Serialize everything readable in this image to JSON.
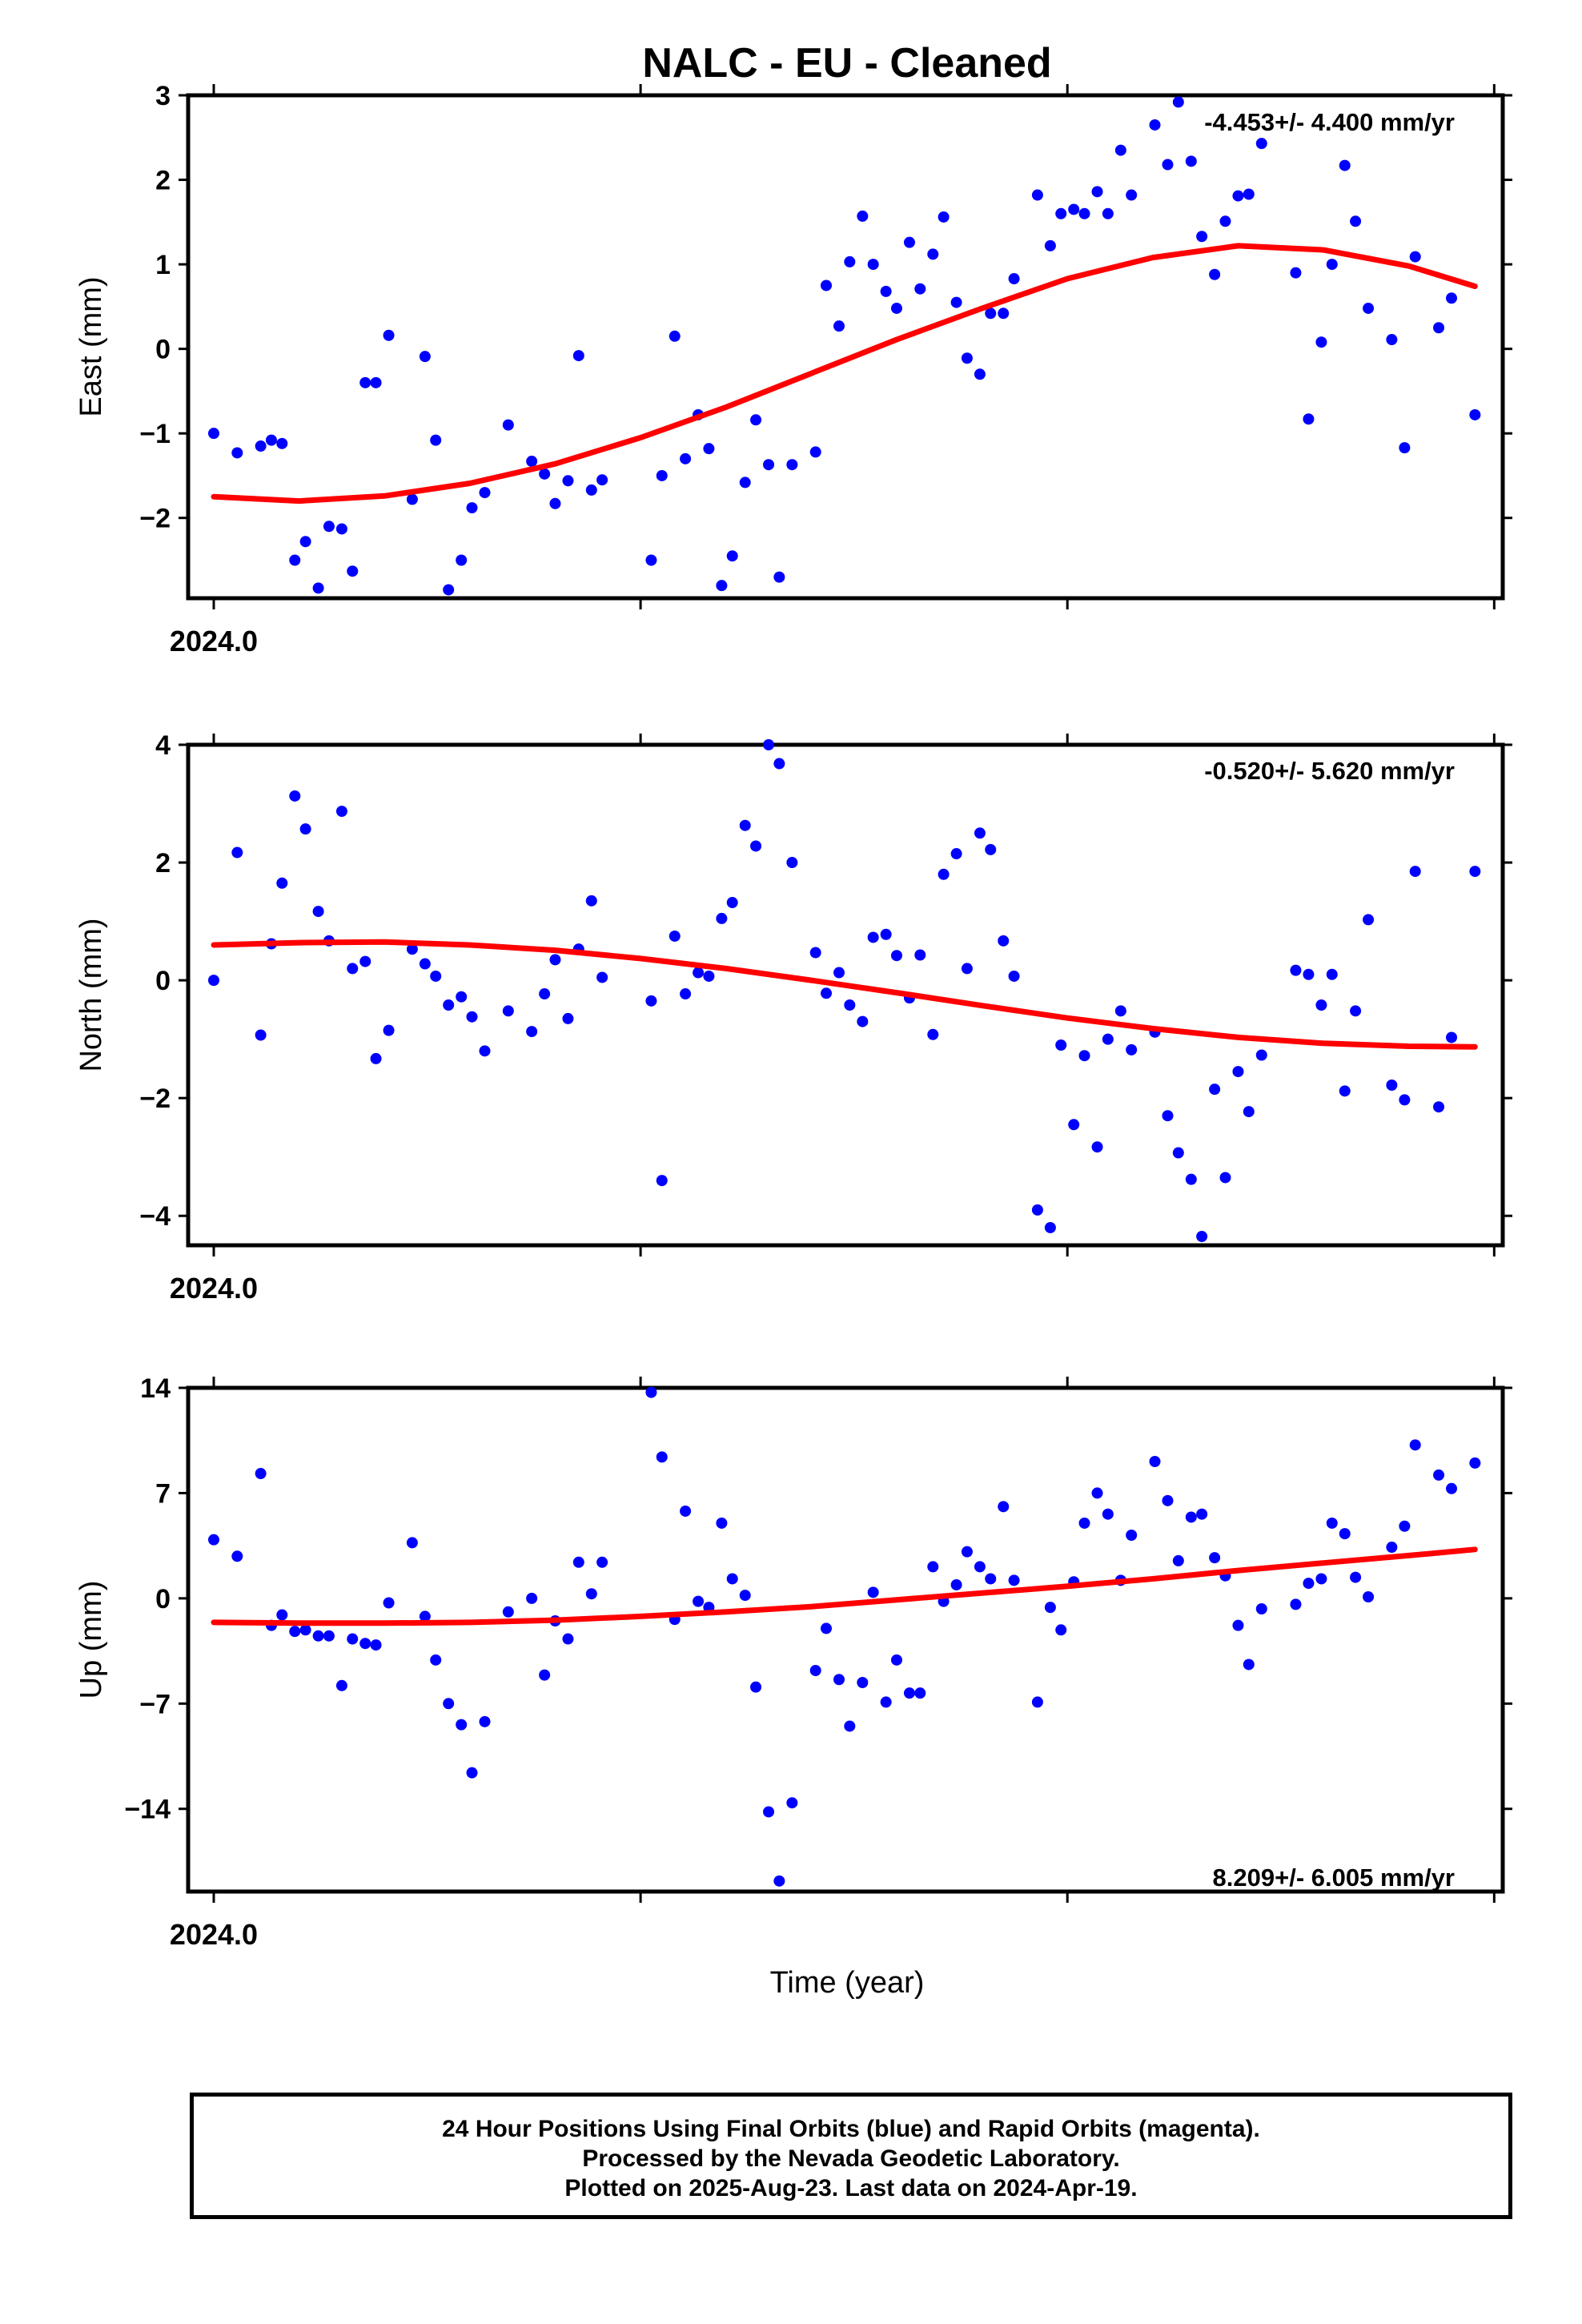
{
  "title": "NALC  - EU - Cleaned",
  "xlabel": "Time (year)",
  "footer": {
    "line1": "24 Hour Positions Using Final Orbits (blue) and Rapid Orbits (magenta).",
    "line2": "Processed by the Nevada Geodetic Laboratory.",
    "line3": "Plotted on 2025-Aug-23. Last data on 2024-Apr-19."
  },
  "colors": {
    "points": "#0000ff",
    "fit": "#ff0000",
    "axes": "#000000"
  },
  "chart_data": [
    {
      "type": "scatter",
      "component": "east",
      "ylabel": "East (mm)",
      "annotation": "-4.453+/- 4.400 mm/yr",
      "ylim": [
        -2.95,
        3.0
      ],
      "yticks": [
        -2,
        -1,
        0,
        1,
        2,
        3
      ],
      "xlim": [
        2023.994,
        2024.302
      ],
      "xtick_labels": [
        {
          "x": 2024.0,
          "label": "2024.0"
        }
      ],
      "grid": false,
      "points": [
        [
          2024.0,
          -1.0
        ],
        [
          2024.0055,
          -1.23
        ],
        [
          2024.011,
          -1.15
        ],
        [
          2024.0135,
          -1.08
        ],
        [
          2024.016,
          -1.12
        ],
        [
          2024.019,
          -2.5
        ],
        [
          2024.0215,
          -2.28
        ],
        [
          2024.0245,
          -2.83
        ],
        [
          2024.027,
          -2.1
        ],
        [
          2024.03,
          -2.13
        ],
        [
          2024.0325,
          -2.63
        ],
        [
          2024.0355,
          -0.4
        ],
        [
          2024.038,
          -0.4
        ],
        [
          2024.041,
          0.16
        ],
        [
          2024.0465,
          -1.78
        ],
        [
          2024.0495,
          -0.09
        ],
        [
          2024.052,
          -1.08
        ],
        [
          2024.055,
          -2.85
        ],
        [
          2024.058,
          -2.5
        ],
        [
          2024.0605,
          -1.88
        ],
        [
          2024.0635,
          -1.7
        ],
        [
          2024.069,
          -0.9
        ],
        [
          2024.0745,
          -1.33
        ],
        [
          2024.0775,
          -1.48
        ],
        [
          2024.08,
          -1.83
        ],
        [
          2024.083,
          -1.56
        ],
        [
          2024.0855,
          -0.08
        ],
        [
          2024.0885,
          -1.67
        ],
        [
          2024.091,
          -1.55
        ],
        [
          2024.1025,
          -2.5
        ],
        [
          2024.105,
          -1.5
        ],
        [
          2024.108,
          0.15
        ],
        [
          2024.1105,
          -1.3
        ],
        [
          2024.1135,
          -0.78
        ],
        [
          2024.116,
          -1.18
        ],
        [
          2024.119,
          -2.8
        ],
        [
          2024.1215,
          -2.45
        ],
        [
          2024.1245,
          -1.58
        ],
        [
          2024.127,
          -0.84
        ],
        [
          2024.13,
          -1.37
        ],
        [
          2024.1325,
          -2.7
        ],
        [
          2024.1355,
          -1.37
        ],
        [
          2024.141,
          -1.22
        ],
        [
          2024.1435,
          0.75
        ],
        [
          2024.1465,
          0.27
        ],
        [
          2024.149,
          1.03
        ],
        [
          2024.152,
          1.57
        ],
        [
          2024.1545,
          1.0
        ],
        [
          2024.1575,
          0.68
        ],
        [
          2024.16,
          0.48
        ],
        [
          2024.163,
          1.26
        ],
        [
          2024.1655,
          0.71
        ],
        [
          2024.1685,
          1.12
        ],
        [
          2024.171,
          1.56
        ],
        [
          2024.174,
          0.55
        ],
        [
          2024.1765,
          -0.11
        ],
        [
          2024.1795,
          -0.3
        ],
        [
          2024.182,
          0.42
        ],
        [
          2024.185,
          0.42
        ],
        [
          2024.1875,
          0.83
        ],
        [
          2024.193,
          1.82
        ],
        [
          2024.196,
          1.22
        ],
        [
          2024.1985,
          1.6
        ],
        [
          2024.2015,
          1.65
        ],
        [
          2024.204,
          1.6
        ],
        [
          2024.207,
          1.86
        ],
        [
          2024.2095,
          1.6
        ],
        [
          2024.2125,
          2.35
        ],
        [
          2024.215,
          1.82
        ],
        [
          2024.2205,
          2.65
        ],
        [
          2024.2235,
          2.18
        ],
        [
          2024.226,
          2.92
        ],
        [
          2024.229,
          2.22
        ],
        [
          2024.2315,
          1.33
        ],
        [
          2024.2345,
          0.88
        ],
        [
          2024.237,
          1.51
        ],
        [
          2024.24,
          1.81
        ],
        [
          2024.2425,
          1.83
        ],
        [
          2024.2455,
          2.43
        ],
        [
          2024.2535,
          0.9
        ],
        [
          2024.2565,
          -0.83
        ],
        [
          2024.2595,
          0.08
        ],
        [
          2024.262,
          1.0
        ],
        [
          2024.265,
          2.17
        ],
        [
          2024.2675,
          1.51
        ],
        [
          2024.2705,
          0.48
        ],
        [
          2024.276,
          0.11
        ],
        [
          2024.279,
          -1.17
        ],
        [
          2024.2815,
          1.09
        ],
        [
          2024.287,
          0.25
        ],
        [
          2024.29,
          0.6
        ],
        [
          2024.2955,
          -0.78
        ]
      ],
      "fit": {
        "x": [
          2024.0,
          2024.02,
          2024.04,
          2024.06,
          2024.08,
          2024.1,
          2024.12,
          2024.14,
          2024.16,
          2024.18,
          2024.2,
          2024.22,
          2024.24,
          2024.26,
          2024.28,
          2024.2955
        ],
        "y": [
          -1.75,
          -1.8,
          -1.74,
          -1.59,
          -1.36,
          -1.05,
          -0.69,
          -0.29,
          0.11,
          0.48,
          0.83,
          1.08,
          1.22,
          1.17,
          0.98,
          0.74
        ]
      }
    },
    {
      "type": "scatter",
      "component": "north",
      "ylabel": "North (mm)",
      "annotation": "-0.520+/- 5.620 mm/yr",
      "ylim": [
        -4.5,
        4.0
      ],
      "yticks": [
        -4,
        -2,
        0,
        2,
        4
      ],
      "xlim": [
        2023.994,
        2024.302
      ],
      "xtick_labels": [
        {
          "x": 2024.0,
          "label": "2024.0"
        }
      ],
      "grid": false,
      "points": [
        [
          2024.0,
          0.0
        ],
        [
          2024.0055,
          2.17
        ],
        [
          2024.011,
          -0.93
        ],
        [
          2024.0135,
          0.62
        ],
        [
          2024.016,
          1.65
        ],
        [
          2024.019,
          3.13
        ],
        [
          2024.0215,
          2.57
        ],
        [
          2024.0245,
          1.17
        ],
        [
          2024.027,
          0.67
        ],
        [
          2024.03,
          2.87
        ],
        [
          2024.0325,
          0.2
        ],
        [
          2024.0355,
          0.32
        ],
        [
          2024.038,
          -1.33
        ],
        [
          2024.041,
          -0.85
        ],
        [
          2024.0465,
          0.53
        ],
        [
          2024.0495,
          0.28
        ],
        [
          2024.052,
          0.07
        ],
        [
          2024.055,
          -0.42
        ],
        [
          2024.058,
          -0.28
        ],
        [
          2024.0605,
          -0.62
        ],
        [
          2024.0635,
          -1.2
        ],
        [
          2024.069,
          -0.52
        ],
        [
          2024.0745,
          -0.87
        ],
        [
          2024.0775,
          -0.23
        ],
        [
          2024.08,
          0.35
        ],
        [
          2024.083,
          -0.65
        ],
        [
          2024.0855,
          0.53
        ],
        [
          2024.0885,
          1.35
        ],
        [
          2024.091,
          0.05
        ],
        [
          2024.1025,
          -0.35
        ],
        [
          2024.105,
          -3.4
        ],
        [
          2024.108,
          0.75
        ],
        [
          2024.1105,
          -0.23
        ],
        [
          2024.1135,
          0.13
        ],
        [
          2024.116,
          0.07
        ],
        [
          2024.119,
          1.05
        ],
        [
          2024.1215,
          1.32
        ],
        [
          2024.1245,
          2.63
        ],
        [
          2024.127,
          2.28
        ],
        [
          2024.13,
          4.0
        ],
        [
          2024.1325,
          3.68
        ],
        [
          2024.1355,
          2.0
        ],
        [
          2024.141,
          0.47
        ],
        [
          2024.1435,
          -0.22
        ],
        [
          2024.1465,
          0.13
        ],
        [
          2024.149,
          -0.42
        ],
        [
          2024.152,
          -0.7
        ],
        [
          2024.1545,
          0.73
        ],
        [
          2024.1575,
          0.78
        ],
        [
          2024.16,
          0.42
        ],
        [
          2024.163,
          -0.3
        ],
        [
          2024.1655,
          0.43
        ],
        [
          2024.1685,
          -0.92
        ],
        [
          2024.171,
          1.8
        ],
        [
          2024.174,
          2.15
        ],
        [
          2024.1765,
          0.2
        ],
        [
          2024.1795,
          2.5
        ],
        [
          2024.182,
          2.22
        ],
        [
          2024.185,
          0.67
        ],
        [
          2024.1875,
          0.07
        ],
        [
          2024.193,
          -3.9
        ],
        [
          2024.196,
          -4.2
        ],
        [
          2024.1985,
          -1.1
        ],
        [
          2024.2015,
          -2.45
        ],
        [
          2024.204,
          -1.28
        ],
        [
          2024.207,
          -2.83
        ],
        [
          2024.2095,
          -1.0
        ],
        [
          2024.2125,
          -0.52
        ],
        [
          2024.215,
          -1.18
        ],
        [
          2024.2205,
          -0.88
        ],
        [
          2024.2235,
          -2.3
        ],
        [
          2024.226,
          -2.93
        ],
        [
          2024.229,
          -3.38
        ],
        [
          2024.2315,
          -4.35
        ],
        [
          2024.2345,
          -1.85
        ],
        [
          2024.237,
          -3.35
        ],
        [
          2024.24,
          -1.55
        ],
        [
          2024.2425,
          -2.23
        ],
        [
          2024.2455,
          -1.27
        ],
        [
          2024.2535,
          0.17
        ],
        [
          2024.2565,
          0.1
        ],
        [
          2024.2595,
          -0.42
        ],
        [
          2024.262,
          0.1
        ],
        [
          2024.265,
          -1.88
        ],
        [
          2024.2675,
          -0.52
        ],
        [
          2024.2705,
          1.03
        ],
        [
          2024.276,
          -1.78
        ],
        [
          2024.279,
          -2.03
        ],
        [
          2024.2815,
          1.85
        ],
        [
          2024.287,
          -2.15
        ],
        [
          2024.29,
          -0.97
        ],
        [
          2024.2955,
          1.85
        ]
      ],
      "fit": {
        "x": [
          2024.0,
          2024.02,
          2024.04,
          2024.06,
          2024.08,
          2024.1,
          2024.12,
          2024.14,
          2024.16,
          2024.18,
          2024.2,
          2024.22,
          2024.24,
          2024.26,
          2024.28,
          2024.2955
        ],
        "y": [
          0.6,
          0.64,
          0.65,
          0.6,
          0.51,
          0.37,
          0.2,
          0.0,
          -0.21,
          -0.43,
          -0.64,
          -0.82,
          -0.97,
          -1.07,
          -1.12,
          -1.13
        ]
      }
    },
    {
      "type": "scatter",
      "component": "up",
      "ylabel": "Up (mm)",
      "annotation": "8.209+/- 6.005 mm/yr",
      "ylim": [
        -19.5,
        14.0
      ],
      "yticks": [
        -14,
        -7,
        0,
        7,
        14
      ],
      "xlim": [
        2023.994,
        2024.302
      ],
      "xtick_labels": [
        {
          "x": 2024.0,
          "label": "2024.0"
        }
      ],
      "grid": false,
      "points": [
        [
          2024.0,
          3.9
        ],
        [
          2024.0055,
          2.8
        ],
        [
          2024.011,
          8.3
        ],
        [
          2024.0135,
          -1.8
        ],
        [
          2024.016,
          -1.1
        ],
        [
          2024.019,
          -2.2
        ],
        [
          2024.0215,
          -2.1
        ],
        [
          2024.0245,
          -2.5
        ],
        [
          2024.027,
          -2.5
        ],
        [
          2024.03,
          -5.8
        ],
        [
          2024.0325,
          -2.7
        ],
        [
          2024.0355,
          -3.0
        ],
        [
          2024.038,
          -3.1
        ],
        [
          2024.041,
          -0.3
        ],
        [
          2024.0465,
          3.7
        ],
        [
          2024.0495,
          -1.2
        ],
        [
          2024.052,
          -4.1
        ],
        [
          2024.055,
          -7.0
        ],
        [
          2024.058,
          -8.4
        ],
        [
          2024.0605,
          -11.6
        ],
        [
          2024.0635,
          -8.2
        ],
        [
          2024.069,
          -0.9
        ],
        [
          2024.0745,
          0.0
        ],
        [
          2024.0775,
          -5.1
        ],
        [
          2024.08,
          -1.5
        ],
        [
          2024.083,
          -2.7
        ],
        [
          2024.0855,
          2.4
        ],
        [
          2024.0885,
          0.3
        ],
        [
          2024.091,
          2.4
        ],
        [
          2024.1025,
          13.7
        ],
        [
          2024.105,
          9.4
        ],
        [
          2024.108,
          -1.4
        ],
        [
          2024.1105,
          5.8
        ],
        [
          2024.1135,
          -0.2
        ],
        [
          2024.116,
          -0.6
        ],
        [
          2024.119,
          5.0
        ],
        [
          2024.1215,
          1.3
        ],
        [
          2024.1245,
          0.2
        ],
        [
          2024.127,
          -5.9
        ],
        [
          2024.13,
          -14.2
        ],
        [
          2024.1325,
          -18.8
        ],
        [
          2024.1355,
          -13.6
        ],
        [
          2024.141,
          -4.8
        ],
        [
          2024.1435,
          -2.0
        ],
        [
          2024.1465,
          -5.4
        ],
        [
          2024.149,
          -8.5
        ],
        [
          2024.152,
          -5.6
        ],
        [
          2024.1545,
          0.4
        ],
        [
          2024.1575,
          -6.9
        ],
        [
          2024.16,
          -4.1
        ],
        [
          2024.163,
          -6.3
        ],
        [
          2024.1655,
          -6.3
        ],
        [
          2024.1685,
          2.1
        ],
        [
          2024.171,
          -0.2
        ],
        [
          2024.174,
          0.9
        ],
        [
          2024.1765,
          3.1
        ],
        [
          2024.1795,
          2.1
        ],
        [
          2024.182,
          1.3
        ],
        [
          2024.185,
          6.1
        ],
        [
          2024.1875,
          1.2
        ],
        [
          2024.193,
          -6.9
        ],
        [
          2024.196,
          -0.6
        ],
        [
          2024.1985,
          -2.1
        ],
        [
          2024.2015,
          1.1
        ],
        [
          2024.204,
          5.0
        ],
        [
          2024.207,
          7.0
        ],
        [
          2024.2095,
          5.6
        ],
        [
          2024.2125,
          1.2
        ],
        [
          2024.215,
          4.2
        ],
        [
          2024.2205,
          9.1
        ],
        [
          2024.2235,
          6.5
        ],
        [
          2024.226,
          2.5
        ],
        [
          2024.229,
          5.4
        ],
        [
          2024.2315,
          5.6
        ],
        [
          2024.2345,
          2.7
        ],
        [
          2024.237,
          1.5
        ],
        [
          2024.24,
          -1.8
        ],
        [
          2024.2425,
          -4.4
        ],
        [
          2024.2455,
          -0.7
        ],
        [
          2024.2535,
          -0.4
        ],
        [
          2024.2565,
          1.0
        ],
        [
          2024.2595,
          1.3
        ],
        [
          2024.262,
          5.0
        ],
        [
          2024.265,
          4.3
        ],
        [
          2024.2675,
          1.4
        ],
        [
          2024.2705,
          0.1
        ],
        [
          2024.276,
          3.4
        ],
        [
          2024.279,
          4.8
        ],
        [
          2024.2815,
          10.2
        ],
        [
          2024.287,
          8.2
        ],
        [
          2024.29,
          7.3
        ],
        [
          2024.2955,
          9.0
        ]
      ],
      "fit": {
        "x": [
          2024.0,
          2024.02,
          2024.04,
          2024.06,
          2024.08,
          2024.1,
          2024.12,
          2024.14,
          2024.16,
          2024.18,
          2024.2,
          2024.22,
          2024.24,
          2024.26,
          2024.28,
          2024.2955
        ],
        "y": [
          -1.6,
          -1.65,
          -1.65,
          -1.6,
          -1.45,
          -1.2,
          -0.9,
          -0.55,
          -0.1,
          0.35,
          0.8,
          1.3,
          1.85,
          2.35,
          2.85,
          3.25
        ]
      }
    }
  ]
}
